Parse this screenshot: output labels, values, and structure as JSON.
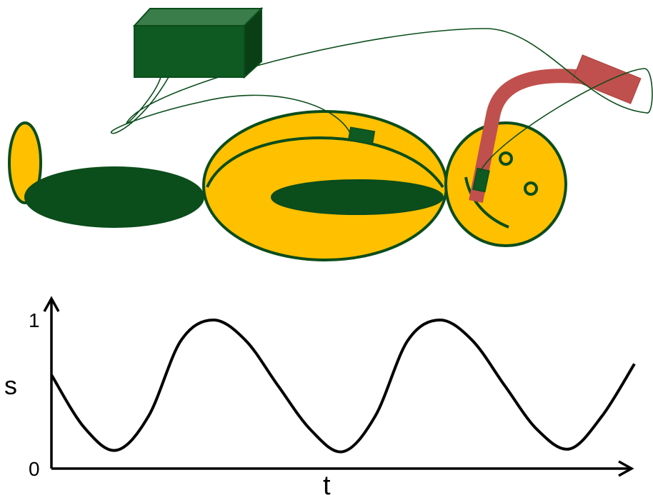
{
  "colors": {
    "body_fill": "#FFC000",
    "dark_green": "#0B4D1B",
    "box_front": "#0E5A22",
    "box_top": "#3A7D4A",
    "box_side": "#0A3F16",
    "tube": "#C0504D",
    "curve": "#000000"
  },
  "graph": {
    "y_axis_label": "s",
    "x_axis_label": "t",
    "y_tick_top": "1",
    "y_tick_bottom": "0"
  },
  "chart_data": {
    "type": "line",
    "xlabel": "t",
    "ylabel": "s",
    "ylim": [
      0,
      1
    ],
    "y_ticks": [
      "0",
      "1"
    ],
    "grid": false,
    "series": [
      {
        "values": [
          0.6,
          0.22,
          0.05,
          0.3,
          0.85,
          1.0,
          0.85,
          0.52,
          0.2,
          0.04,
          0.3,
          0.85,
          1.0,
          0.85,
          0.52,
          0.2,
          0.06,
          0.3,
          0.68
        ]
      }
    ]
  }
}
